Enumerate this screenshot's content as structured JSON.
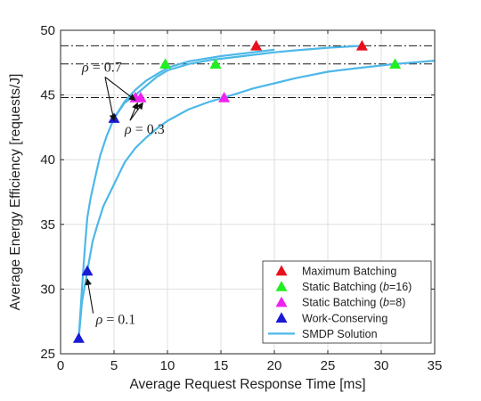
{
  "chart_data": {
    "type": "scatter",
    "xlabel": "Average Request Response Time [ms]",
    "ylabel": "Average Energy Efficiency [requests/J]",
    "xlim": [
      0,
      35
    ],
    "ylim": [
      25,
      50
    ],
    "xticks": [
      0,
      5,
      10,
      15,
      20,
      25,
      30,
      35
    ],
    "yticks": [
      25,
      30,
      35,
      40,
      45,
      50
    ],
    "grid": true,
    "legend_position": "bottom-right",
    "series": [
      {
        "name": "Maximum Batching",
        "marker": "triangle",
        "color": "#e8101c",
        "points": [
          {
            "x": 18.3,
            "y": 48.8
          },
          {
            "x": 28.2,
            "y": 48.8
          }
        ]
      },
      {
        "name": "Static Batching (b=16)",
        "name_parts": [
          "Static Batching (",
          "b",
          "=16)"
        ],
        "marker": "triangle",
        "color": "#22ee22",
        "points": [
          {
            "x": 9.8,
            "y": 47.4
          },
          {
            "x": 14.5,
            "y": 47.4
          },
          {
            "x": 31.3,
            "y": 47.4
          }
        ]
      },
      {
        "name": "Static Batching (b=8)",
        "name_parts": [
          "Static Batching (",
          "b",
          "=8)"
        ],
        "marker": "triangle",
        "color": "#ee22ee",
        "points": [
          {
            "x": 7.0,
            "y": 44.8
          },
          {
            "x": 7.5,
            "y": 44.8
          },
          {
            "x": 15.3,
            "y": 44.8
          }
        ]
      },
      {
        "name": "Work-Conserving",
        "marker": "triangle",
        "color": "#1a1ad6",
        "points": [
          {
            "x": 1.7,
            "y": 26.2
          },
          {
            "x": 2.5,
            "y": 31.4
          },
          {
            "x": 5.0,
            "y": 43.2
          }
        ]
      },
      {
        "name": "SMDP Solution",
        "marker": "line",
        "color": "#4db8e8",
        "curves": [
          [
            [
              1.7,
              26.2
            ],
            [
              2.0,
              30.0
            ],
            [
              2.3,
              33.5
            ],
            [
              2.5,
              35.5
            ],
            [
              2.8,
              37.0
            ],
            [
              3.2,
              38.5
            ],
            [
              3.7,
              40.3
            ],
            [
              4.3,
              41.8
            ],
            [
              5.0,
              43.2
            ],
            [
              6.0,
              44.5
            ],
            [
              7.0,
              45.4
            ],
            [
              8.0,
              46.1
            ],
            [
              10.0,
              47.1
            ],
            [
              12.0,
              47.6
            ],
            [
              15.0,
              48.0
            ],
            [
              18.0,
              48.3
            ],
            [
              20.0,
              48.5
            ]
          ],
          [
            [
              1.7,
              26.2
            ],
            [
              2.0,
              29.0
            ],
            [
              2.5,
              31.4
            ],
            [
              3.0,
              33.7
            ],
            [
              3.5,
              35.1
            ],
            [
              4.0,
              36.4
            ],
            [
              5.0,
              38.1
            ],
            [
              6.0,
              39.8
            ],
            [
              7.0,
              40.9
            ],
            [
              8.0,
              41.7
            ],
            [
              9.0,
              42.4
            ],
            [
              10.0,
              43.0
            ],
            [
              12.0,
              43.9
            ],
            [
              14.0,
              44.5
            ],
            [
              15.3,
              44.8
            ],
            [
              18.0,
              45.5
            ],
            [
              20.0,
              45.9
            ],
            [
              22.0,
              46.3
            ],
            [
              25.0,
              46.8
            ],
            [
              28.0,
              47.1
            ],
            [
              31.3,
              47.4
            ],
            [
              35.0,
              47.65
            ]
          ],
          [
            [
              5.0,
              43.2
            ],
            [
              6.0,
              44.4
            ],
            [
              7.0,
              45.0
            ],
            [
              8.0,
              45.7
            ],
            [
              9.0,
              46.4
            ],
            [
              10.0,
              46.9
            ],
            [
              12.0,
              47.4
            ],
            [
              14.0,
              47.7
            ],
            [
              16.0,
              47.9
            ],
            [
              18.0,
              48.1
            ],
            [
              20.0,
              48.3
            ],
            [
              22.0,
              48.45
            ],
            [
              25.0,
              48.65
            ],
            [
              28.2,
              48.8
            ]
          ]
        ]
      }
    ],
    "reference_lines": [
      {
        "y": 48.8,
        "style": "dash-dot"
      },
      {
        "y": 47.4,
        "style": "dash-dot"
      },
      {
        "y": 44.8,
        "style": "dash-dot"
      }
    ],
    "annotations": [
      {
        "label": "ρ = 0.7",
        "symbol": "ρ",
        "eq": " = 0.7",
        "text_at": [
          2.0,
          46.8
        ],
        "arrows_to": [
          [
            5.0,
            43.2
          ],
          [
            7.0,
            44.8
          ]
        ]
      },
      {
        "label": "ρ = 0.3",
        "symbol": "ρ",
        "eq": " = 0.3",
        "text_at": [
          6.0,
          42.0
        ],
        "arrows_to": [
          [
            7.2,
            44.6
          ],
          [
            7.7,
            44.6
          ]
        ]
      },
      {
        "label": "ρ = 0.1",
        "symbol": "ρ",
        "eq": " = 0.1",
        "text_at": [
          3.3,
          27.3
        ],
        "arrows_to": [
          [
            2.5,
            31.0
          ]
        ]
      }
    ]
  }
}
